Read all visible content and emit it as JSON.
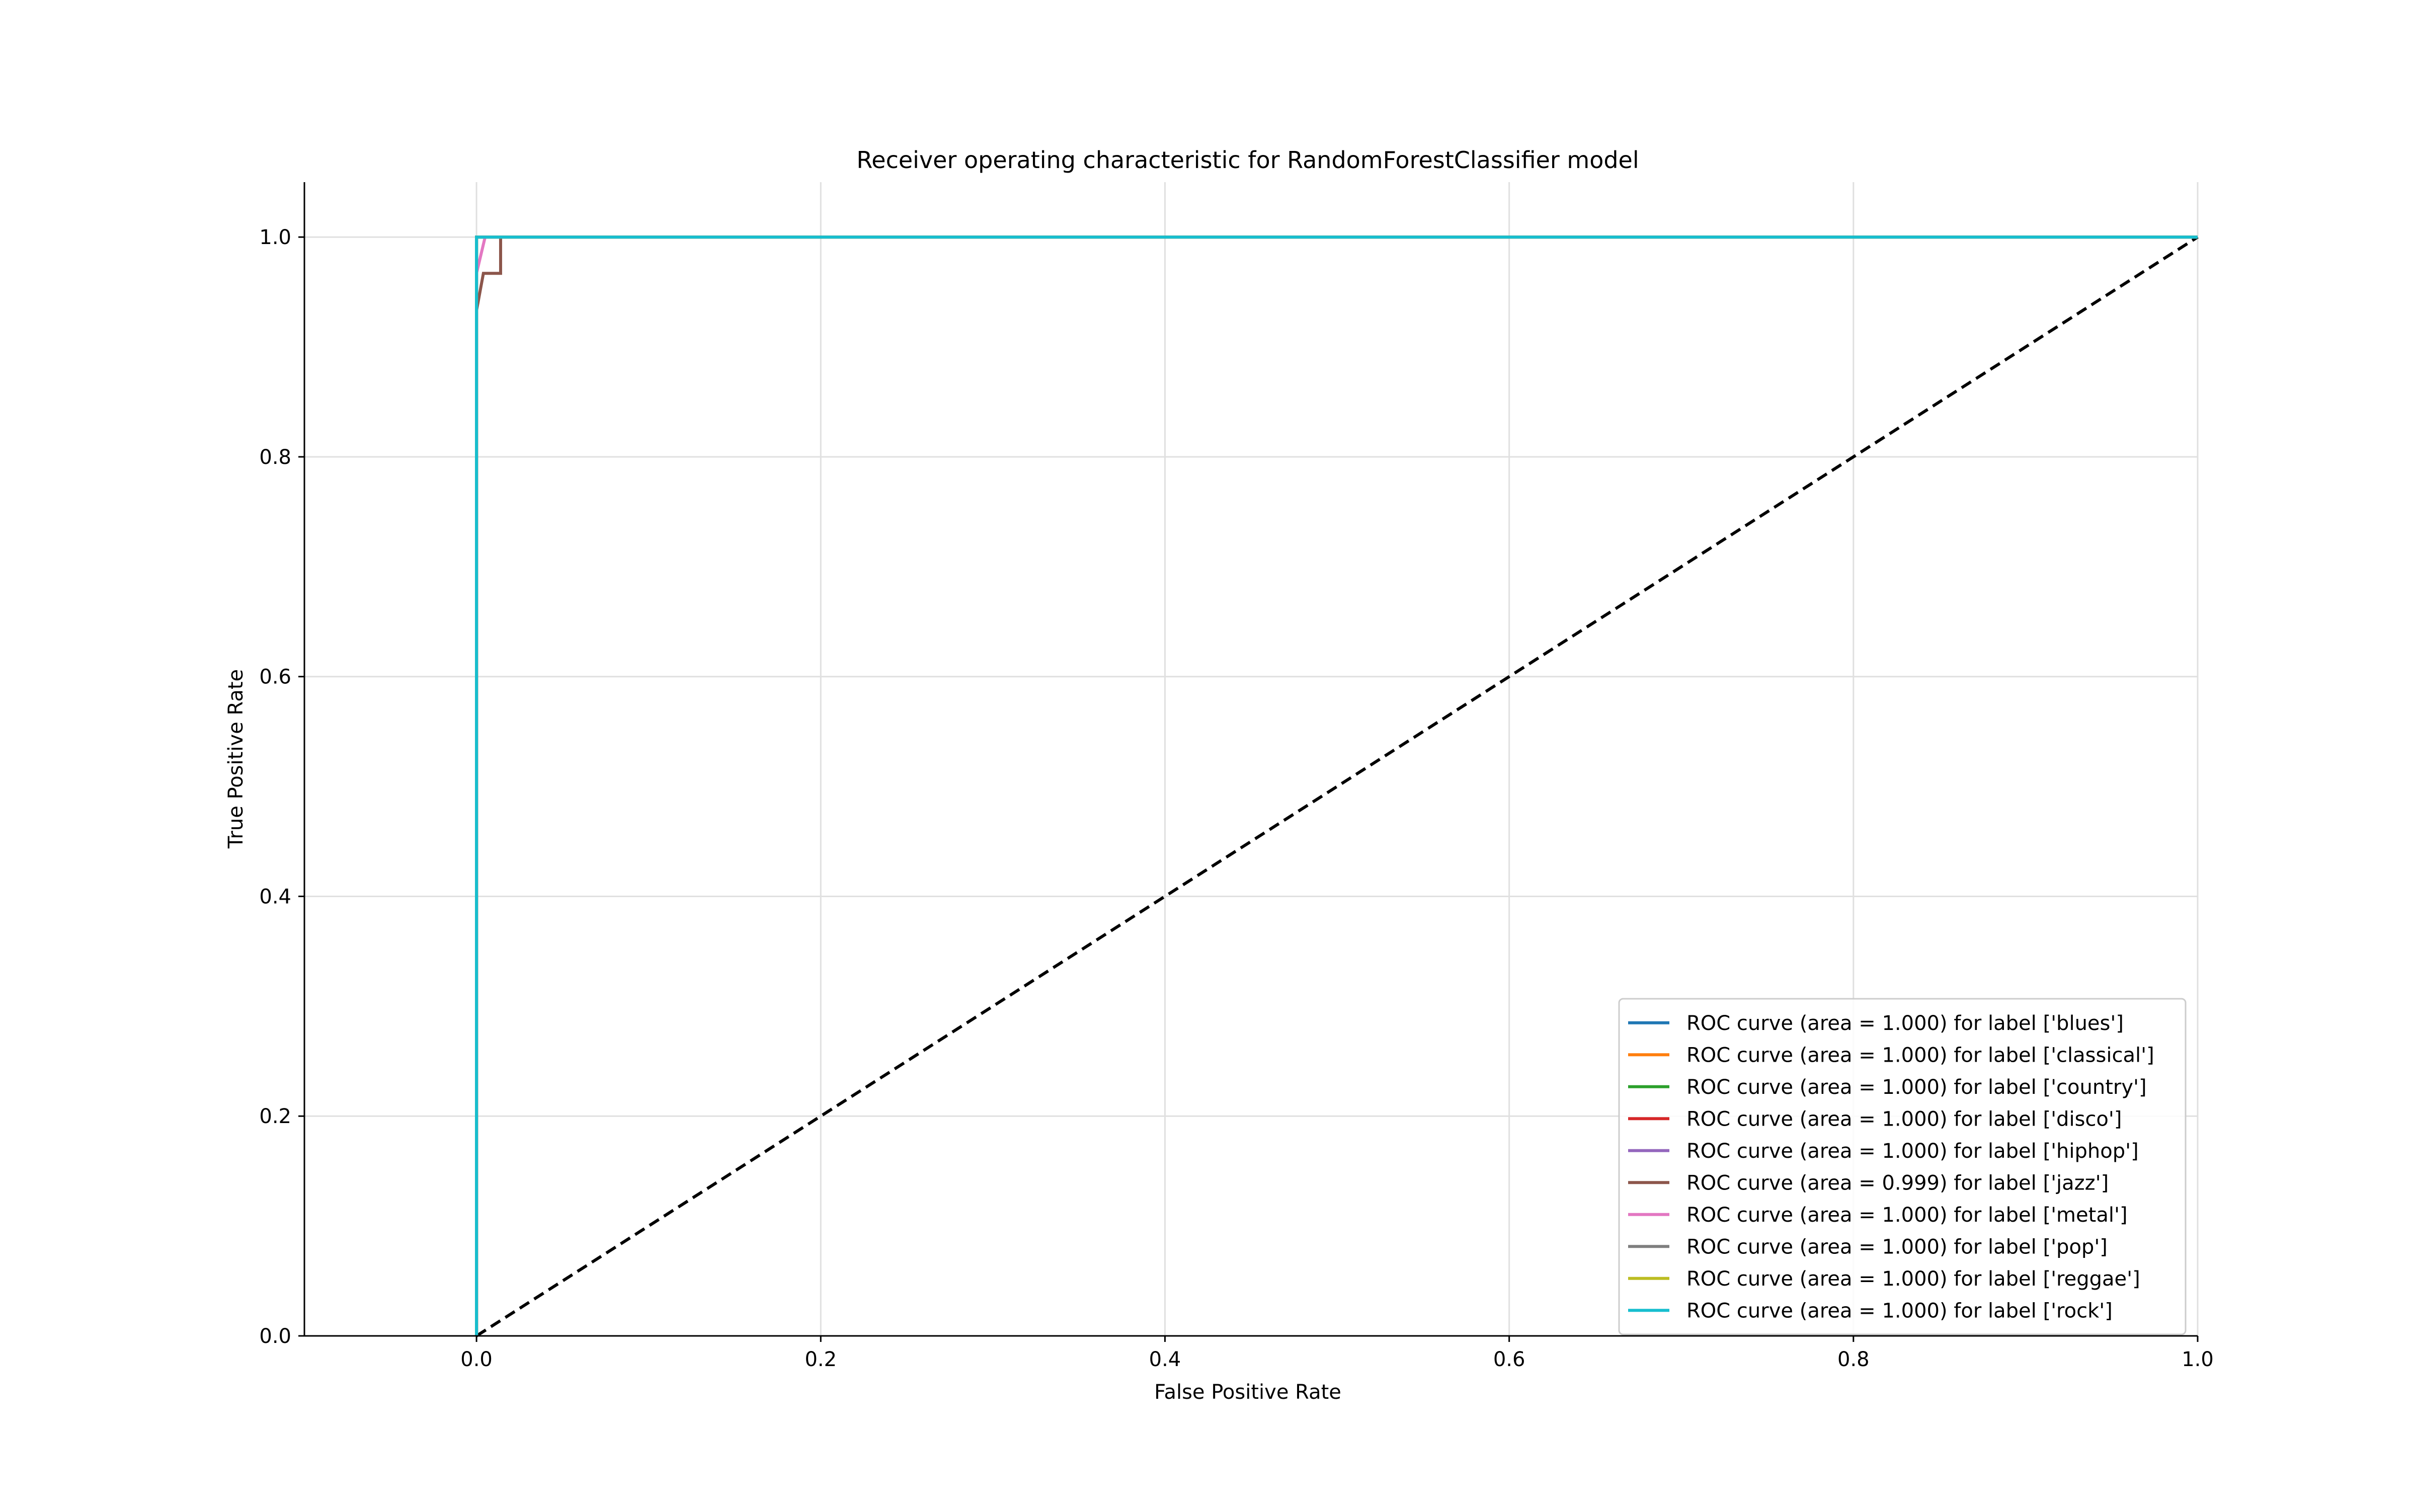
{
  "chart_data": {
    "type": "line",
    "title": "Receiver operating characteristic for RandomForestClassifier model",
    "xlabel": "False Positive Rate",
    "ylabel": "True Positive Rate",
    "xlim": [
      -0.1,
      1.0
    ],
    "ylim": [
      0.0,
      1.05
    ],
    "xticks": [
      "0.0",
      "0.2",
      "0.4",
      "0.6",
      "0.8",
      "1.0"
    ],
    "yticks": [
      "0.0",
      "0.2",
      "0.4",
      "0.6",
      "0.8",
      "1.0"
    ],
    "grid": true,
    "legend_position": "lower-right",
    "series": [
      {
        "name": "ROC curve (area = 1.000) for label ['blues']",
        "color": "#1f77b4",
        "x": [
          0,
          0,
          1
        ],
        "y": [
          0,
          1,
          1
        ]
      },
      {
        "name": "ROC curve (area = 1.000) for label ['classical']",
        "color": "#ff7f0e",
        "x": [
          0,
          0,
          1
        ],
        "y": [
          0,
          1,
          1
        ]
      },
      {
        "name": "ROC curve (area = 1.000) for label ['country']",
        "color": "#2ca02c",
        "x": [
          0,
          0,
          1
        ],
        "y": [
          0,
          1,
          1
        ]
      },
      {
        "name": "ROC curve (area = 1.000) for label ['disco']",
        "color": "#d62728",
        "x": [
          0,
          0,
          1
        ],
        "y": [
          0,
          1,
          1
        ]
      },
      {
        "name": "ROC curve (area = 1.000) for label ['hiphop']",
        "color": "#9467bd",
        "x": [
          0,
          0,
          1
        ],
        "y": [
          0,
          1,
          1
        ]
      },
      {
        "name": "ROC curve (area = 0.999) for label ['jazz']",
        "color": "#8c564b",
        "x": [
          0,
          0,
          0.004,
          0.014,
          0.014,
          0.014,
          1
        ],
        "y": [
          0,
          0.933,
          0.967,
          0.967,
          0.967,
          1,
          1
        ]
      },
      {
        "name": "ROC curve (area = 1.000) for label ['metal']",
        "color": "#e377c2",
        "x": [
          0,
          0,
          0.005,
          1
        ],
        "y": [
          0,
          0.967,
          1,
          1
        ]
      },
      {
        "name": "ROC curve (area = 1.000) for label ['pop']",
        "color": "#7f7f7f",
        "x": [
          0,
          0,
          1
        ],
        "y": [
          0,
          1,
          1
        ]
      },
      {
        "name": "ROC curve (area = 1.000) for label ['reggae']",
        "color": "#bcbd22",
        "x": [
          0,
          0,
          1
        ],
        "y": [
          0,
          1,
          1
        ]
      },
      {
        "name": "ROC curve (area = 1.000) for label ['rock']",
        "color": "#17becf",
        "x": [
          0,
          0,
          1
        ],
        "y": [
          0,
          1,
          1
        ]
      }
    ],
    "reference_line": {
      "color": "#000000",
      "style": "dashed",
      "x": [
        0,
        1
      ],
      "y": [
        0,
        1
      ]
    }
  }
}
